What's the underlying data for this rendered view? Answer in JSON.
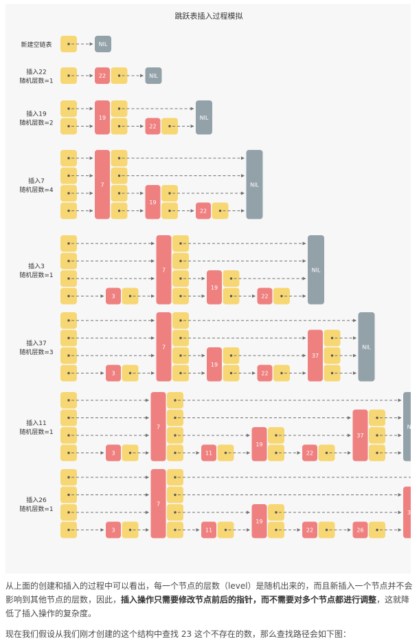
{
  "diagram": {
    "title": "跳跃表插入过程模拟",
    "nil_label": "NIL",
    "colors": {
      "background": "#f7f7f7",
      "pointer_box": "#f7d774",
      "key_box": "#ef8080",
      "nil_box": "#93a1a9",
      "arrow": "#707070",
      "label_text": "#333333"
    },
    "steps": [
      {
        "label": [
          "新建空链表"
        ],
        "nodes": []
      },
      {
        "label": [
          "插入22",
          "随机层数=1"
        ],
        "nodes": [
          {
            "key": "22",
            "level": 1
          }
        ]
      },
      {
        "label": [
          "插入19",
          "随机层数=2"
        ],
        "nodes": [
          {
            "key": "19",
            "level": 2
          },
          {
            "key": "22",
            "level": 1
          }
        ]
      },
      {
        "label": [
          "插入7",
          "随机层数=4"
        ],
        "nodes": [
          {
            "key": "7",
            "level": 4
          },
          {
            "key": "19",
            "level": 2
          },
          {
            "key": "22",
            "level": 1
          }
        ]
      },
      {
        "label": [
          "插入3",
          "随机层数=1"
        ],
        "nodes": [
          {
            "key": "3",
            "level": 1
          },
          {
            "key": "7",
            "level": 4
          },
          {
            "key": "19",
            "level": 2
          },
          {
            "key": "22",
            "level": 1
          }
        ]
      },
      {
        "label": [
          "插入37",
          "随机层数=3"
        ],
        "nodes": [
          {
            "key": "3",
            "level": 1
          },
          {
            "key": "7",
            "level": 4
          },
          {
            "key": "19",
            "level": 2
          },
          {
            "key": "22",
            "level": 1
          },
          {
            "key": "37",
            "level": 3
          }
        ]
      },
      {
        "label": [
          "插入11",
          "随机层数=1"
        ],
        "nodes": [
          {
            "key": "3",
            "level": 1
          },
          {
            "key": "7",
            "level": 4
          },
          {
            "key": "11",
            "level": 1
          },
          {
            "key": "19",
            "level": 2
          },
          {
            "key": "22",
            "level": 1
          },
          {
            "key": "37",
            "level": 3
          }
        ]
      },
      {
        "label": [
          "插入26",
          "随机层数=1"
        ],
        "nodes": [
          {
            "key": "3",
            "level": 1
          },
          {
            "key": "7",
            "level": 4
          },
          {
            "key": "11",
            "level": 1
          },
          {
            "key": "19",
            "level": 2
          },
          {
            "key": "22",
            "level": 1
          },
          {
            "key": "26",
            "level": 1
          },
          {
            "key": "37",
            "level": 3
          }
        ]
      }
    ]
  },
  "paragraph1": {
    "part1": "从上面的创建和插入的过程中可以看出，每一个节点的层数（level）是随机出来的，而且新插入一个节点并不会影响到其他节点的层数，因此，",
    "bold1": "插入操作只需要修改节点前后的指针，而不需要对多个节点都进行调整",
    "part2": "，这就降低了插入操作的复杂度。"
  },
  "paragraph2": "现在我们假设从我们刚才创建的这个结构中查找 23 这个不存在的数，那么查找路径会如下图："
}
